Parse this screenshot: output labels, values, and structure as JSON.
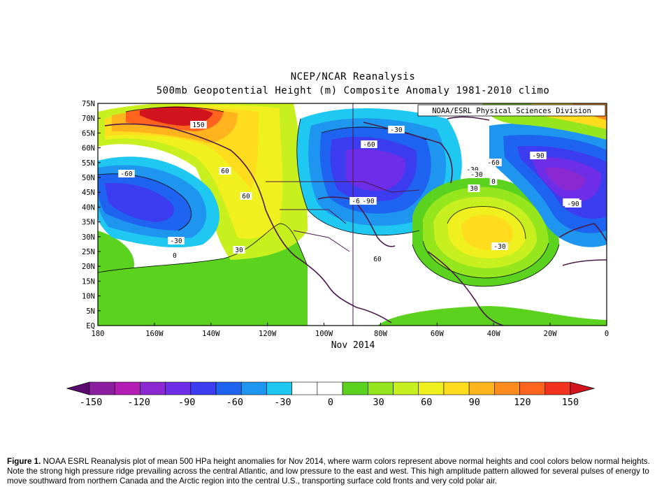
{
  "map": {
    "title": "NCEP/NCAR Reanalysis",
    "subtitle": "500mb Geopotential Height (m) Composite Anomaly 1981-2010 climo",
    "credit": "NOAA/ESRL Physical Sciences Division",
    "period": "Nov 2014",
    "lat_labels": [
      "75N",
      "70N",
      "65N",
      "60N",
      "55N",
      "50N",
      "45N",
      "40N",
      "35N",
      "30N",
      "25N",
      "20N",
      "15N",
      "10N",
      "5N",
      "EQ"
    ],
    "lon_labels": [
      "180",
      "160W",
      "140W",
      "120W",
      "100W",
      "80W",
      "60W",
      "40W",
      "20W",
      "0"
    ],
    "contour_labels": [
      "150",
      "60",
      "60",
      "-60",
      "-30",
      "0",
      "30",
      "-30",
      "-60",
      "-60",
      "-90",
      "-30",
      "-60",
      "-90",
      "-30",
      "0",
      "30",
      "-60",
      "-90",
      "-30",
      "60"
    ],
    "colorbar": {
      "ticks": [
        "-150",
        "-120",
        "-90",
        "-60",
        "-30",
        "0",
        "30",
        "60",
        "90",
        "120",
        "150"
      ],
      "colors": [
        "#5a0a6e",
        "#8c1ea0",
        "#b41eb4",
        "#8c28d2",
        "#6e2de6",
        "#3c3cf0",
        "#1e64f0",
        "#1e96f0",
        "#1ec8f0",
        "#ffffff",
        "#ffffff",
        "#5ad21e",
        "#96e61e",
        "#c8f01e",
        "#f0f01e",
        "#ffdc1e",
        "#ffb41e",
        "#ff8c1e",
        "#ff641e",
        "#f0321e",
        "#d2141e"
      ]
    }
  },
  "caption": {
    "label": "Figure 1.",
    "text": " NOAA ESRL Reanalysis plot of mean 500 HPa height anomalies for Nov 2014, where warm colors represent above normal heights and cool colors below normal heights. Note the strong high pressure ridge prevailing across the central Atlantic, and low pressure to the east and west. This high amplitude pattern allowed for several pulses of energy to move southward from northern Canada and the Arctic region into the central U.S., transporting surface cold fronts and very cold polar air."
  }
}
